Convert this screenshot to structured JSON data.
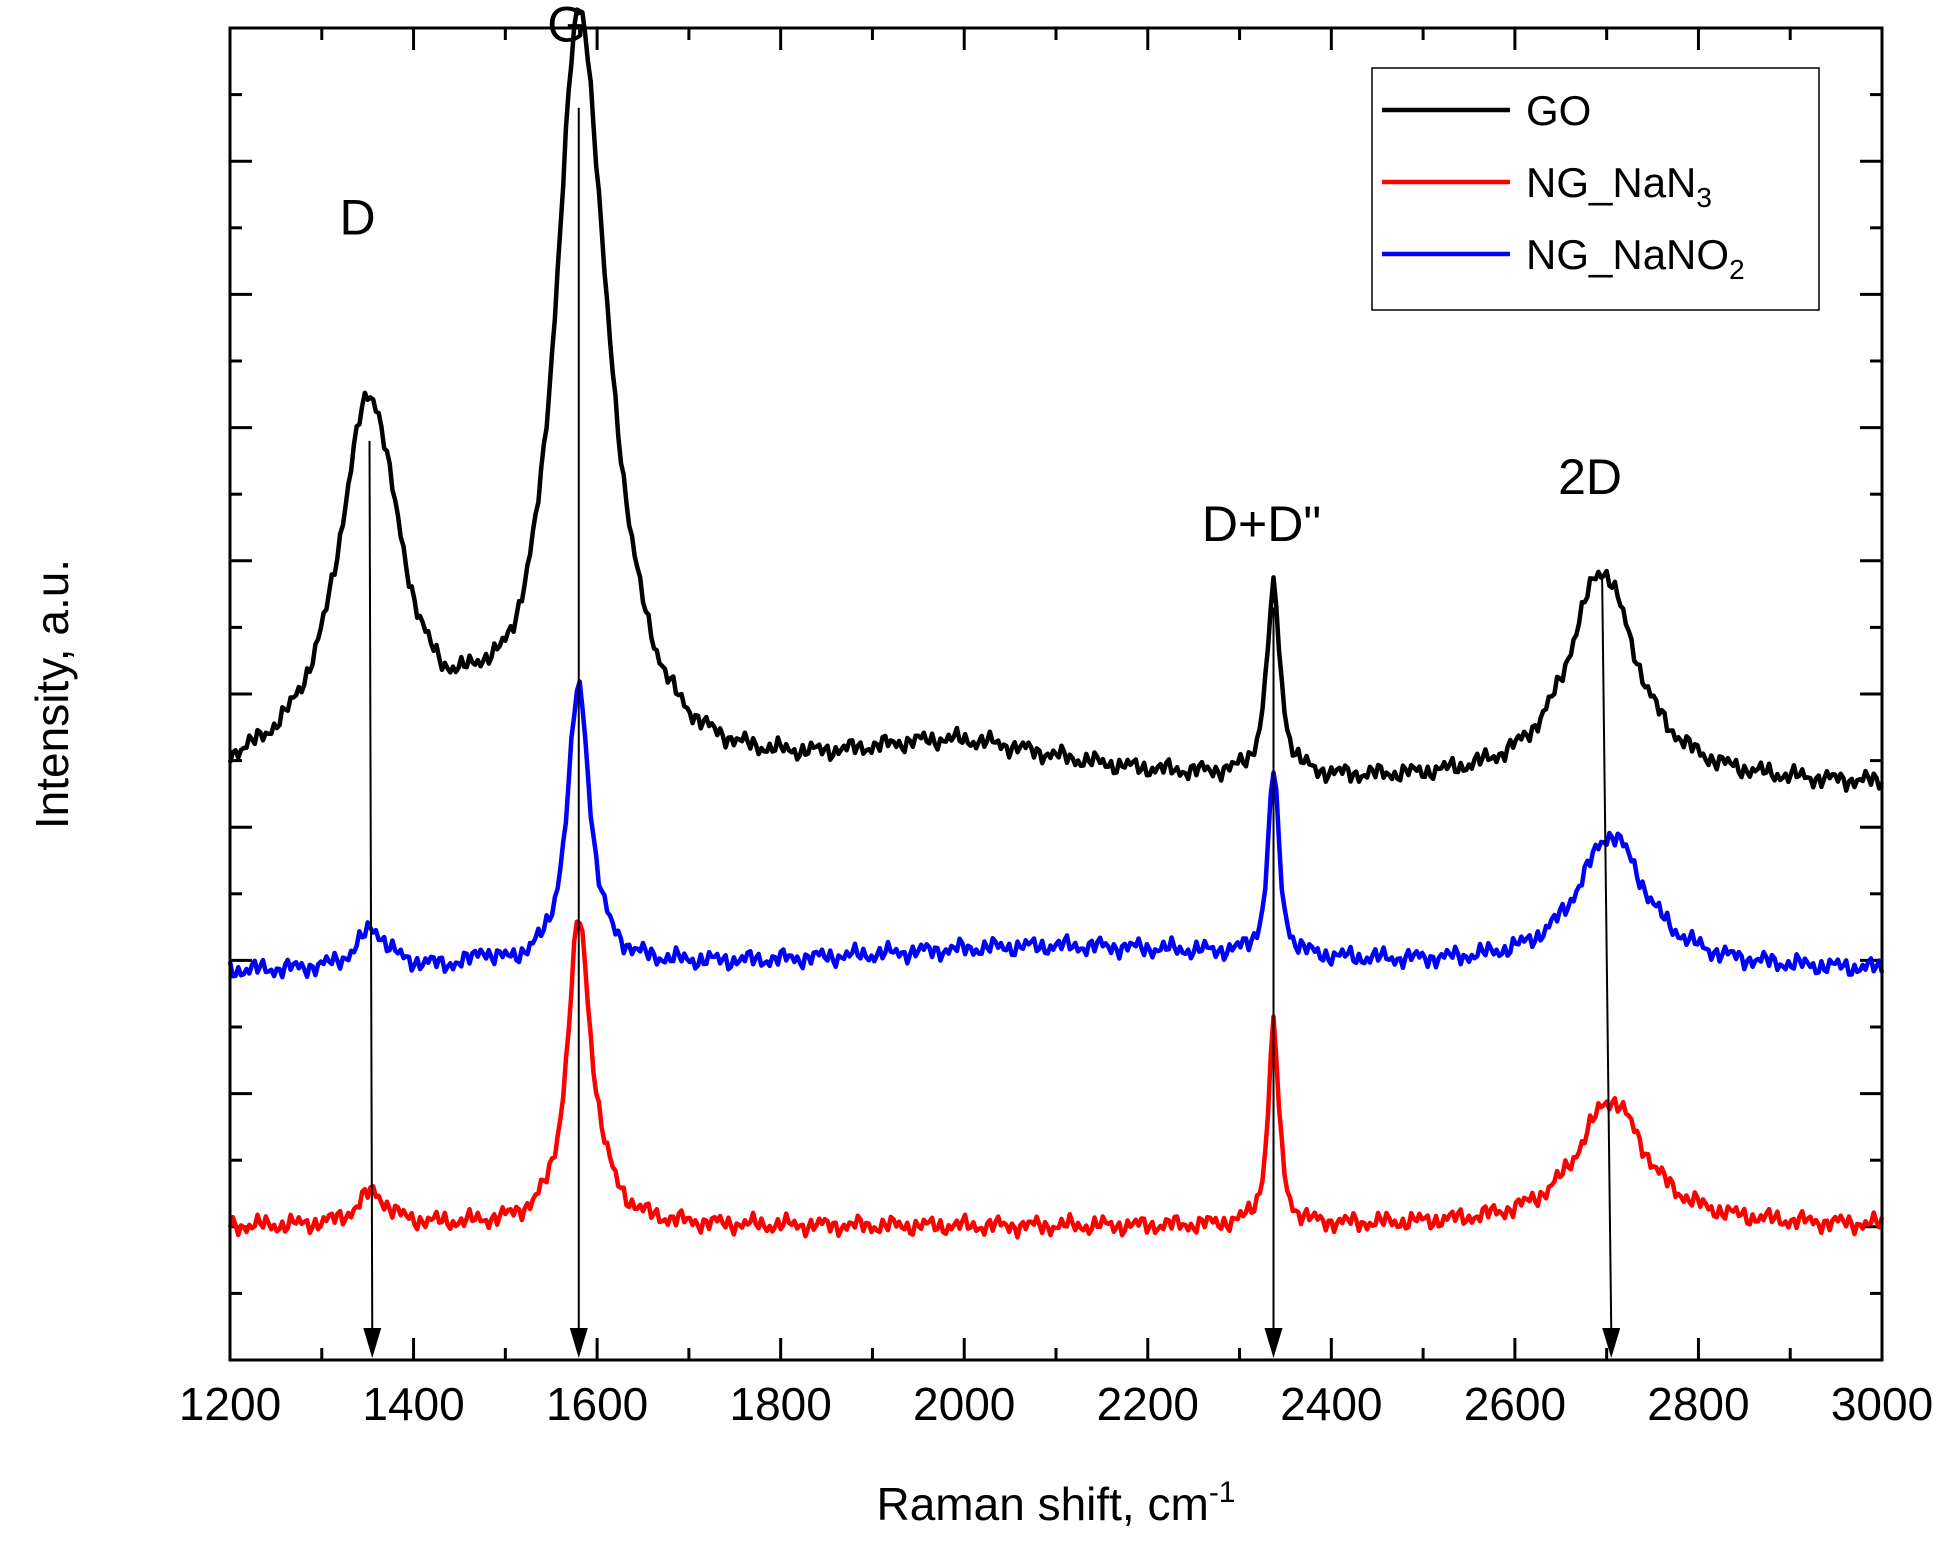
{
  "chart_data": {
    "type": "line",
    "xlabel": "Raman shift, cm",
    "xlabel_superscript": "-1",
    "ylabel": "Intensity, a.u.",
    "xlim": [
      1200,
      3000
    ],
    "ylim": [
      0,
      10
    ],
    "x_ticks": [
      "1200",
      "1400",
      "1600",
      "1800",
      "2000",
      "2200",
      "2400",
      "2600",
      "2800",
      "3000"
    ],
    "legend_position": "top-right",
    "series": [
      {
        "key": "go",
        "name": "GO",
        "name_main": "GO",
        "name_sub": "",
        "color": "#000000",
        "baseline": 4.3,
        "peaks": [
          {
            "x": 1352,
            "height": 2.8,
            "width": 42
          },
          {
            "x": 1580,
            "height": 5.2,
            "width": 32
          },
          {
            "x": 1610,
            "height": 0.8,
            "width": 40
          },
          {
            "x": 2337,
            "height": 1.4,
            "width": 9
          },
          {
            "x": 2695,
            "height": 1.6,
            "width": 45
          },
          {
            "x": 1990,
            "height": 0.3,
            "width": 150
          },
          {
            "x": 1470,
            "height": 0.15,
            "width": 25
          }
        ]
      },
      {
        "key": "nano2",
        "name": "NG_NaNO2",
        "name_main": "NG_NaNO",
        "name_sub": "2",
        "color": "#0000ff",
        "baseline": 2.9,
        "peaks": [
          {
            "x": 1355,
            "height": 0.3,
            "width": 20
          },
          {
            "x": 1580,
            "height": 2.1,
            "width": 15
          },
          {
            "x": 1475,
            "height": 0.1,
            "width": 8
          },
          {
            "x": 2337,
            "height": 1.4,
            "width": 7
          },
          {
            "x": 2705,
            "height": 1.0,
            "width": 45
          },
          {
            "x": 2100,
            "height": 0.2,
            "width": 300
          }
        ]
      },
      {
        "key": "nan3",
        "name": "NG_NaN3",
        "name_main": "NG_NaN",
        "name_sub": "3",
        "color": "#ff0000",
        "baseline": 1.0,
        "peaks": [
          {
            "x": 1355,
            "height": 0.25,
            "width": 20
          },
          {
            "x": 1580,
            "height": 2.2,
            "width": 15
          },
          {
            "x": 1600,
            "height": 0.2,
            "width": 20
          },
          {
            "x": 2337,
            "height": 1.5,
            "width": 7
          },
          {
            "x": 2705,
            "height": 0.95,
            "width": 45
          }
        ]
      }
    ],
    "legend_order": [
      "go",
      "nan3",
      "nano2"
    ],
    "annotations": [
      {
        "label": "D",
        "peak_x": 1352,
        "label_y": 8.45,
        "arrow_from_y": 6.9,
        "arrow_to_x": 1355
      },
      {
        "label": "G",
        "peak_x": 1580,
        "label_y": 9.9,
        "arrow_from_y": 9.4,
        "arrow_to_x": 1580
      },
      {
        "label": "D+D\"",
        "peak_x": 2337,
        "label_y": 6.15,
        "arrow_from_y": 5.65,
        "arrow_to_x": 2337
      },
      {
        "label": "2D",
        "peak_x": 2695,
        "label_y": 6.5,
        "arrow_from_y": 5.9,
        "arrow_to_x": 2705
      }
    ]
  }
}
